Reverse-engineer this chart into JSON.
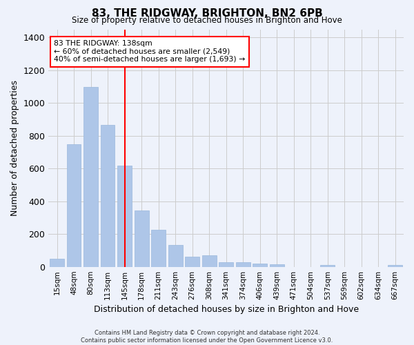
{
  "title": "83, THE RIDGWAY, BRIGHTON, BN2 6PB",
  "subtitle": "Size of property relative to detached houses in Brighton and Hove",
  "xlabel": "Distribution of detached houses by size in Brighton and Hove",
  "ylabel": "Number of detached properties",
  "footer_line1": "Contains HM Land Registry data © Crown copyright and database right 2024.",
  "footer_line2": "Contains public sector information licensed under the Open Government Licence v3.0.",
  "categories": [
    "15sqm",
    "48sqm",
    "80sqm",
    "113sqm",
    "145sqm",
    "178sqm",
    "211sqm",
    "243sqm",
    "276sqm",
    "308sqm",
    "341sqm",
    "374sqm",
    "406sqm",
    "439sqm",
    "471sqm",
    "504sqm",
    "537sqm",
    "569sqm",
    "602sqm",
    "634sqm",
    "667sqm"
  ],
  "values": [
    50,
    750,
    1100,
    865,
    620,
    345,
    225,
    135,
    60,
    70,
    30,
    30,
    20,
    15,
    0,
    0,
    12,
    0,
    0,
    0,
    12
  ],
  "bar_color": "#aec6e8",
  "bar_edge_color": "#9ab8dc",
  "grid_color": "#cccccc",
  "background_color": "#eef2fb",
  "vline_x_index": 4,
  "vline_color": "red",
  "annotation_text": "83 THE RIDGWAY: 138sqm\n← 60% of detached houses are smaller (2,549)\n40% of semi-detached houses are larger (1,693) →",
  "ylim": [
    0,
    1450
  ],
  "yticks": [
    0,
    200,
    400,
    600,
    800,
    1000,
    1200,
    1400
  ]
}
